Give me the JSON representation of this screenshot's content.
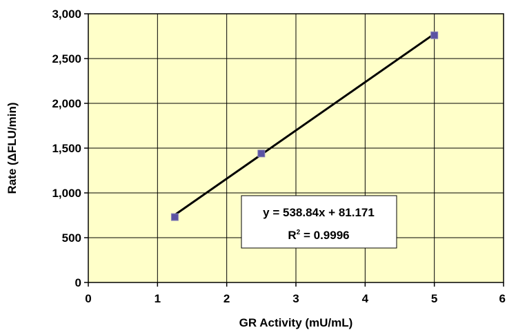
{
  "chart_data": {
    "type": "scatter",
    "title": "",
    "xlabel": "GR Activity (mU/mL)",
    "ylabel": "Rate (ΔFLU/min)",
    "xlim": [
      0,
      6
    ],
    "ylim": [
      0,
      3000
    ],
    "x_ticks": [
      0,
      1,
      2,
      3,
      4,
      5,
      6
    ],
    "y_ticks": [
      0,
      500,
      1000,
      1500,
      2000,
      2500,
      3000
    ],
    "y_tick_labels": [
      "0",
      "500",
      "1,000",
      "1,500",
      "2,000",
      "2,500",
      "3,000"
    ],
    "x_tick_labels": [
      "0",
      "1",
      "2",
      "3",
      "4",
      "5",
      "6"
    ],
    "grid": true,
    "series": [
      {
        "x": [
          1.25,
          2.5,
          5
        ],
        "y": [
          730,
          1440,
          2760
        ]
      }
    ],
    "trendline": {
      "slope": 538.84,
      "intercept": 81.171,
      "x_range": [
        1.25,
        5
      ]
    },
    "annotation": {
      "equation": "y = 538.84x + 81.171",
      "r_label": "R",
      "r_exponent": "2",
      "r_value": " = 0.9996"
    },
    "colors": {
      "plot_background": "#ffffc9",
      "marker": "#5b53a3",
      "trendline": "#000000",
      "grid": "#000000"
    }
  }
}
